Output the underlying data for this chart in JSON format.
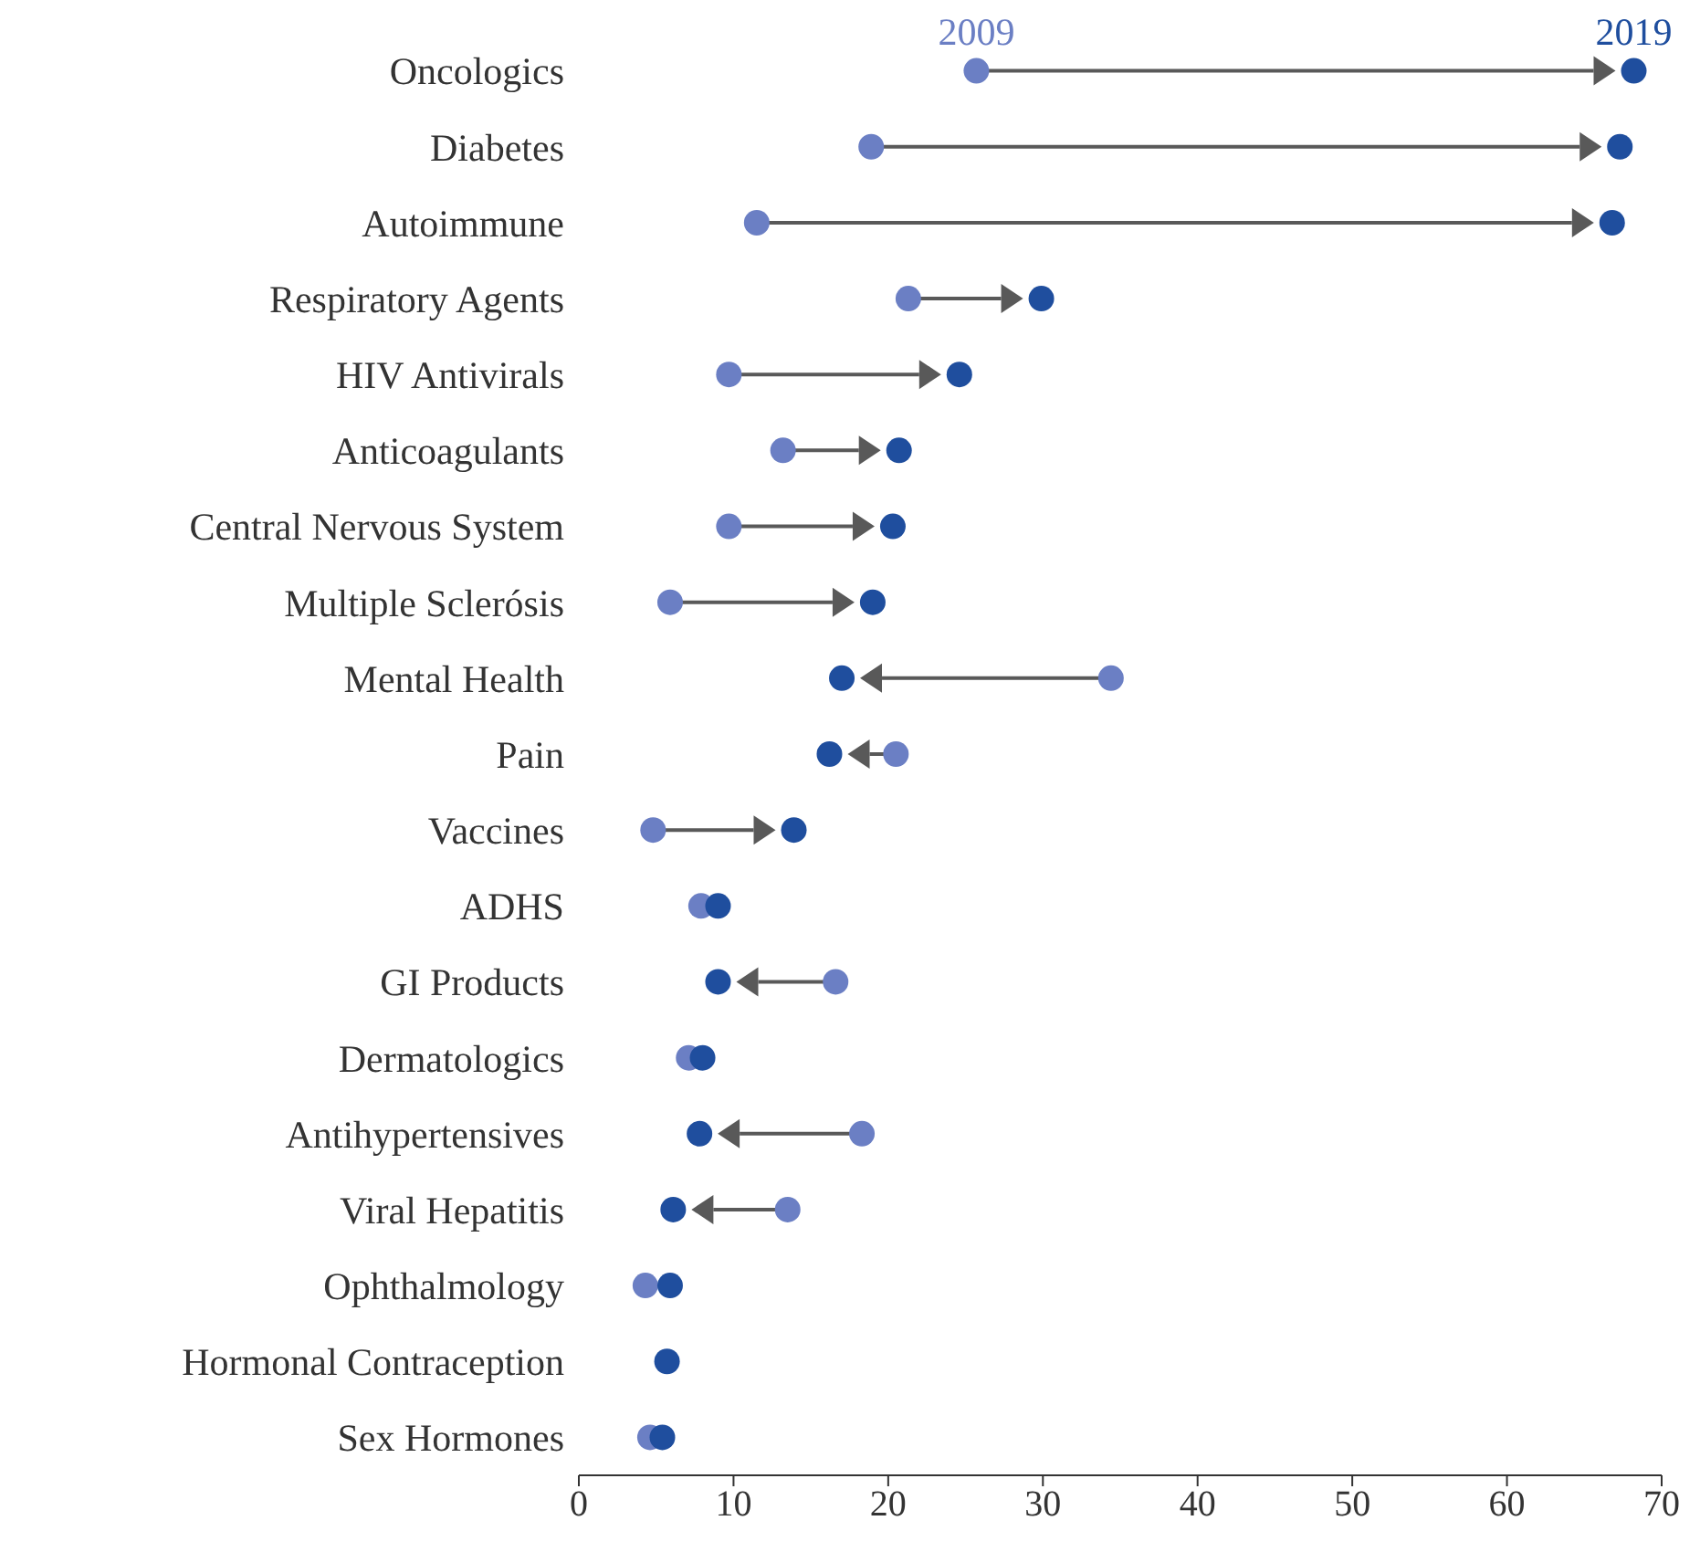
{
  "chart_data": {
    "type": "scatter",
    "orientation": "horizontal",
    "categories": [
      "Oncologics",
      "Diabetes",
      "Autoimmune",
      "Respiratory Agents",
      "HIV Antivirals",
      "Anticoagulants",
      "Central Nervous System",
      "Multiple Sclerósis",
      "Mental Health",
      "Pain",
      "Vaccines",
      "ADHS",
      "GI Products",
      "Dermatologics",
      "Antihypertensives",
      "Viral Hepatitis",
      "Ophthalmology",
      "Hormonal Contraception",
      "Sex Hormones"
    ],
    "series": [
      {
        "name": "2009",
        "color": "#6b7fc4",
        "values": [
          25.7,
          18.9,
          11.5,
          21.3,
          9.7,
          13.2,
          9.7,
          5.9,
          34.4,
          20.5,
          4.8,
          7.9,
          16.6,
          7.1,
          18.3,
          13.5,
          4.3,
          null,
          4.6
        ]
      },
      {
        "name": "2019",
        "color": "#1f4e9e",
        "values": [
          68.2,
          67.3,
          66.8,
          29.9,
          24.6,
          20.7,
          20.3,
          19.0,
          17.0,
          16.2,
          13.9,
          9.0,
          9.0,
          8.0,
          7.8,
          6.1,
          5.9,
          5.7,
          5.4
        ]
      }
    ],
    "xlim": [
      0,
      70
    ],
    "xticks": [
      0,
      10,
      20,
      30,
      40,
      50,
      60,
      70
    ],
    "grid": false,
    "legend": false,
    "marker": "circle"
  }
}
